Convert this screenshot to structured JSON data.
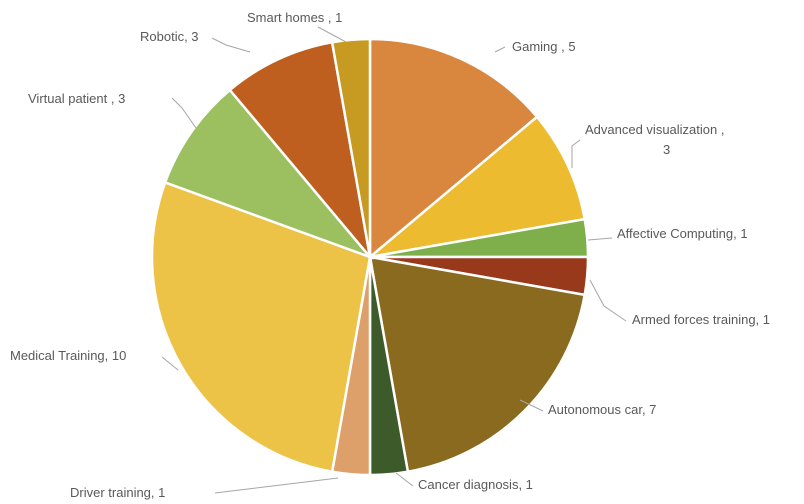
{
  "chart_data": {
    "type": "pie",
    "title": "",
    "slices": [
      {
        "label": "Gaming",
        "value": 5,
        "color": "#d9863f",
        "display": [
          "Gaming , 5"
        ]
      },
      {
        "label": "Advanced visualization",
        "value": 3,
        "color": "#ecbb2f",
        "display": [
          "Advanced visualization ,",
          "3"
        ]
      },
      {
        "label": "Affective Computing",
        "value": 1,
        "color": "#7faf4a",
        "display": [
          "Affective Computing, 1"
        ]
      },
      {
        "label": "Armed forces training",
        "value": 1,
        "color": "#99391c",
        "display": [
          "Armed forces training, 1"
        ]
      },
      {
        "label": "Autonomous car",
        "value": 7,
        "color": "#8a6a1e",
        "display": [
          "Autonomous car, 7"
        ]
      },
      {
        "label": "Cancer diagnosis",
        "value": 1,
        "color": "#3d5a2b",
        "display": [
          "Cancer diagnosis, 1"
        ]
      },
      {
        "label": "Driver training",
        "value": 1,
        "color": "#dea06a",
        "display": [
          "Driver training, 1"
        ]
      },
      {
        "label": "Medical Training",
        "value": 10,
        "color": "#ecc346",
        "display": [
          "Medical Training, 10"
        ]
      },
      {
        "label": "Virtual patient",
        "value": 3,
        "color": "#9cc05f",
        "display": [
          "Virtual patient , 3"
        ]
      },
      {
        "label": "Robotic",
        "value": 3,
        "color": "#bf5f1f",
        "display": [
          "Robotic, 3"
        ]
      },
      {
        "label": "Smart homes",
        "value": 1,
        "color": "#c79a22",
        "display": [
          "Smart homes , 1"
        ]
      }
    ],
    "start_angle_deg": 0,
    "direction": "clockwise",
    "legend": "none",
    "data_labels": "outside with leader lines"
  }
}
